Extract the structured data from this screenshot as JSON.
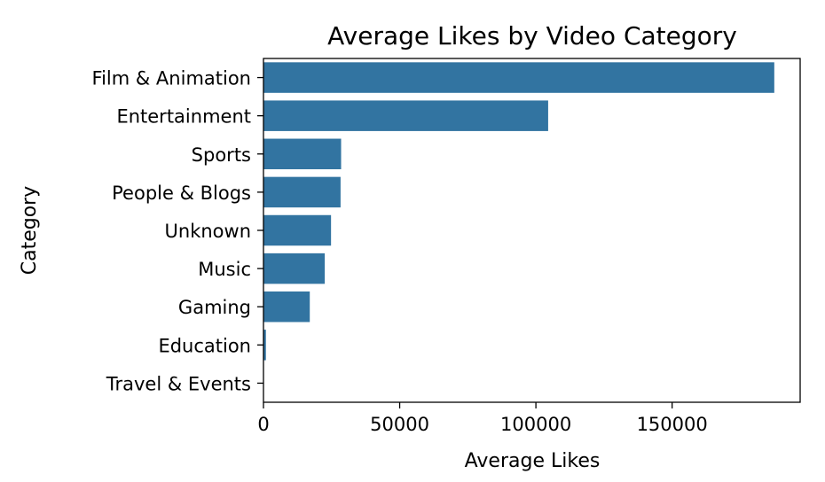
{
  "chart_data": {
    "type": "bar",
    "orientation": "horizontal",
    "title": "Average Likes by Video Category",
    "xlabel": "Average Likes",
    "ylabel": "Category",
    "categories": [
      "Film & Animation",
      "Entertainment",
      "Sports",
      "People & Blogs",
      "Unknown",
      "Music",
      "Gaming",
      "Education",
      "Travel & Events"
    ],
    "values": [
      187500,
      104500,
      28500,
      28300,
      24800,
      22500,
      17000,
      900,
      150
    ],
    "xlim": [
      0,
      197000
    ],
    "xticks": [
      0,
      50000,
      100000,
      150000
    ],
    "xtick_labels": [
      "0",
      "50000",
      "100000",
      "150000"
    ],
    "grid": false,
    "bar_color": "#3274a1"
  }
}
